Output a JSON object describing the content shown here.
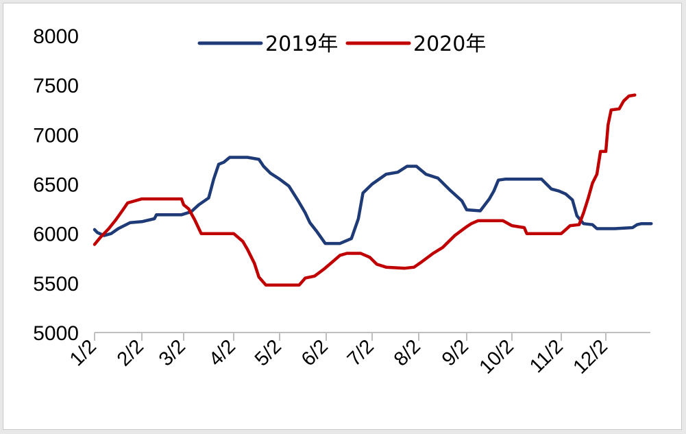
{
  "chart_data": {
    "type": "line",
    "title": "",
    "xlabel": "",
    "ylabel": "",
    "ylim": [
      5000,
      8000
    ],
    "yticks": [
      "5000",
      "5500",
      "6000",
      "6500",
      "7000",
      "7500",
      "8000"
    ],
    "x_tick_labels": [
      "1/2",
      "2/2",
      "3/2",
      "4/2",
      "5/2",
      "6/2",
      "7/2",
      "8/2",
      "9/2",
      "10/2",
      "11/2",
      "12/2"
    ],
    "x_domain": [
      1,
      13.02
    ],
    "legend_position": "top-center",
    "grid": false,
    "series": [
      {
        "name": "2019年",
        "color": "#1f3b77",
        "points": [
          [
            1.0,
            6040
          ],
          [
            1.06,
            6010
          ],
          [
            1.2,
            5980
          ],
          [
            1.35,
            6000
          ],
          [
            1.5,
            6050
          ],
          [
            1.75,
            6110
          ],
          [
            2.0,
            6120
          ],
          [
            2.3,
            6150
          ],
          [
            2.35,
            6190
          ],
          [
            2.7,
            6190
          ],
          [
            2.95,
            6190
          ],
          [
            3.15,
            6220
          ],
          [
            3.3,
            6290
          ],
          [
            3.5,
            6360
          ],
          [
            3.6,
            6550
          ],
          [
            3.7,
            6700
          ],
          [
            3.8,
            6720
          ],
          [
            3.92,
            6770
          ],
          [
            4.3,
            6770
          ],
          [
            4.55,
            6750
          ],
          [
            4.65,
            6680
          ],
          [
            4.8,
            6610
          ],
          [
            5.0,
            6550
          ],
          [
            5.2,
            6480
          ],
          [
            5.4,
            6330
          ],
          [
            5.55,
            6210
          ],
          [
            5.65,
            6110
          ],
          [
            5.8,
            6020
          ],
          [
            5.98,
            5900
          ],
          [
            6.3,
            5900
          ],
          [
            6.4,
            5920
          ],
          [
            6.55,
            5950
          ],
          [
            6.7,
            6150
          ],
          [
            6.8,
            6410
          ],
          [
            7.0,
            6500
          ],
          [
            7.3,
            6600
          ],
          [
            7.55,
            6620
          ],
          [
            7.75,
            6680
          ],
          [
            7.95,
            6680
          ],
          [
            8.15,
            6600
          ],
          [
            8.4,
            6560
          ],
          [
            8.65,
            6440
          ],
          [
            8.9,
            6330
          ],
          [
            9.0,
            6240
          ],
          [
            9.3,
            6230
          ],
          [
            9.5,
            6350
          ],
          [
            9.6,
            6430
          ],
          [
            9.7,
            6540
          ],
          [
            9.85,
            6550
          ],
          [
            10.6,
            6550
          ],
          [
            10.7,
            6500
          ],
          [
            10.8,
            6450
          ],
          [
            10.95,
            6430
          ],
          [
            11.1,
            6400
          ],
          [
            11.25,
            6340
          ],
          [
            11.35,
            6180
          ],
          [
            11.5,
            6100
          ],
          [
            11.7,
            6090
          ],
          [
            11.8,
            6050
          ],
          [
            12.2,
            6050
          ],
          [
            12.6,
            6060
          ],
          [
            12.7,
            6090
          ],
          [
            12.8,
            6100
          ],
          [
            13.02,
            6100
          ]
        ]
      },
      {
        "name": "2020年",
        "color": "#c00000",
        "points": [
          [
            1.0,
            5890
          ],
          [
            1.12,
            5960
          ],
          [
            1.3,
            6050
          ],
          [
            1.45,
            6140
          ],
          [
            1.6,
            6240
          ],
          [
            1.7,
            6310
          ],
          [
            1.85,
            6330
          ],
          [
            2.0,
            6350
          ],
          [
            2.6,
            6350
          ],
          [
            2.95,
            6350
          ],
          [
            3.0,
            6290
          ],
          [
            3.1,
            6250
          ],
          [
            3.22,
            6140
          ],
          [
            3.35,
            6000
          ],
          [
            4.0,
            6000
          ],
          [
            4.2,
            5920
          ],
          [
            4.3,
            5840
          ],
          [
            4.45,
            5700
          ],
          [
            4.55,
            5560
          ],
          [
            4.7,
            5480
          ],
          [
            4.85,
            5480
          ],
          [
            5.3,
            5480
          ],
          [
            5.42,
            5480
          ],
          [
            5.55,
            5550
          ],
          [
            5.75,
            5570
          ],
          [
            5.95,
            5640
          ],
          [
            6.1,
            5700
          ],
          [
            6.3,
            5780
          ],
          [
            6.45,
            5800
          ],
          [
            6.75,
            5800
          ],
          [
            6.95,
            5760
          ],
          [
            7.1,
            5690
          ],
          [
            7.3,
            5660
          ],
          [
            7.7,
            5650
          ],
          [
            7.9,
            5660
          ],
          [
            8.05,
            5710
          ],
          [
            8.3,
            5800
          ],
          [
            8.5,
            5860
          ],
          [
            8.75,
            5980
          ],
          [
            9.0,
            6070
          ],
          [
            9.1,
            6100
          ],
          [
            9.25,
            6130
          ],
          [
            9.8,
            6130
          ],
          [
            10.0,
            6080
          ],
          [
            10.25,
            6060
          ],
          [
            10.3,
            6000
          ],
          [
            10.9,
            6000
          ],
          [
            11.0,
            6000
          ],
          [
            11.1,
            6040
          ],
          [
            11.2,
            6080
          ],
          [
            11.4,
            6090
          ],
          [
            11.5,
            6210
          ],
          [
            11.6,
            6350
          ],
          [
            11.7,
            6510
          ],
          [
            11.8,
            6600
          ],
          [
            11.88,
            6830
          ],
          [
            12.0,
            6830
          ],
          [
            12.05,
            7100
          ],
          [
            12.12,
            7250
          ],
          [
            12.3,
            7260
          ],
          [
            12.4,
            7340
          ],
          [
            12.52,
            7390
          ],
          [
            12.65,
            7400
          ]
        ]
      }
    ]
  }
}
